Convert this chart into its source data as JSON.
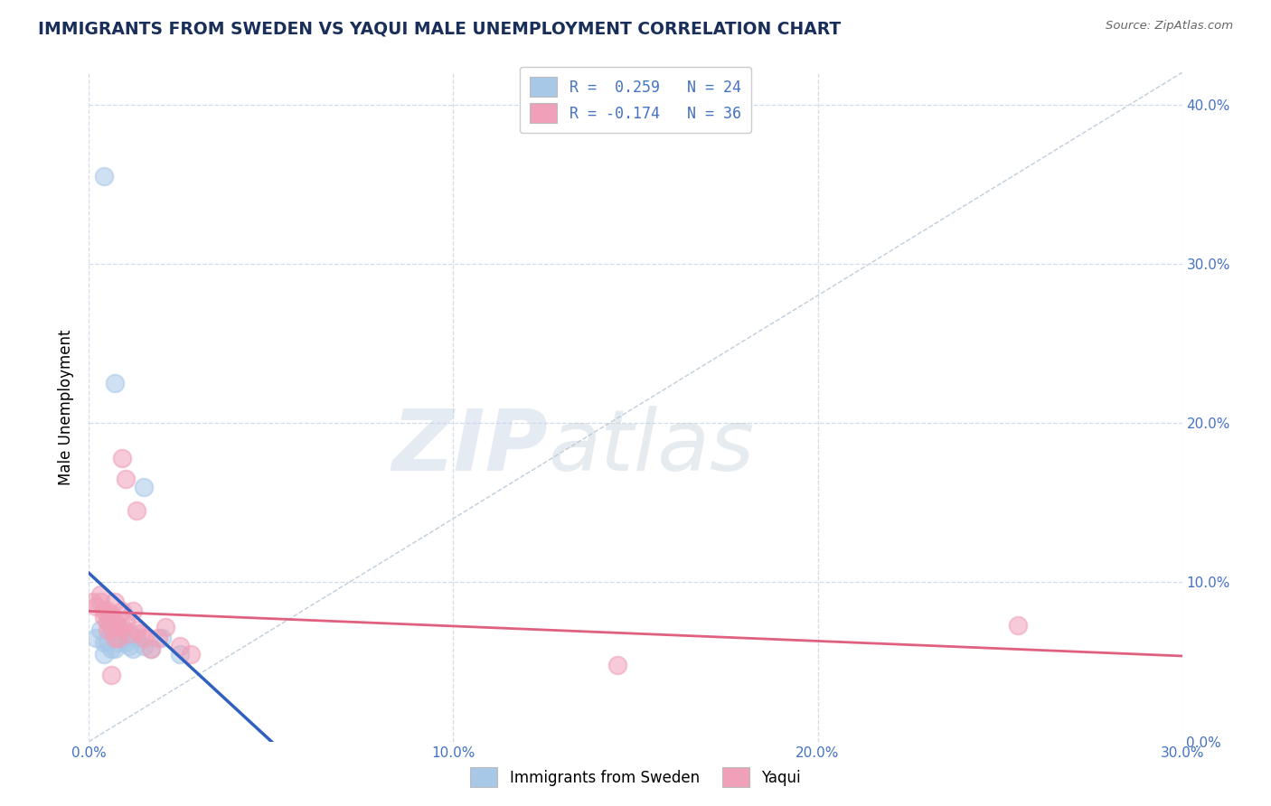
{
  "title": "IMMIGRANTS FROM SWEDEN VS YAQUI MALE UNEMPLOYMENT CORRELATION CHART",
  "source": "Source: ZipAtlas.com",
  "ylabel": "Male Unemployment",
  "xlim": [
    0.0,
    0.3
  ],
  "ylim": [
    0.0,
    0.42
  ],
  "legend_labels": [
    "Immigrants from Sweden",
    "Yaqui"
  ],
  "watermark_zip": "ZIP",
  "watermark_atlas": "atlas",
  "scatter_sweden": [
    [
      0.002,
      0.065
    ],
    [
      0.003,
      0.07
    ],
    [
      0.004,
      0.062
    ],
    [
      0.004,
      0.055
    ],
    [
      0.005,
      0.075
    ],
    [
      0.005,
      0.063
    ],
    [
      0.006,
      0.07
    ],
    [
      0.006,
      0.058
    ],
    [
      0.007,
      0.068
    ],
    [
      0.007,
      0.058
    ],
    [
      0.008,
      0.072
    ],
    [
      0.008,
      0.062
    ],
    [
      0.009,
      0.065
    ],
    [
      0.01,
      0.062
    ],
    [
      0.011,
      0.06
    ],
    [
      0.012,
      0.058
    ],
    [
      0.013,
      0.065
    ],
    [
      0.015,
      0.06
    ],
    [
      0.017,
      0.058
    ],
    [
      0.02,
      0.065
    ],
    [
      0.025,
      0.055
    ],
    [
      0.004,
      0.355
    ],
    [
      0.007,
      0.225
    ],
    [
      0.015,
      0.16
    ]
  ],
  "scatter_yaqui": [
    [
      0.001,
      0.088
    ],
    [
      0.002,
      0.085
    ],
    [
      0.003,
      0.092
    ],
    [
      0.003,
      0.088
    ],
    [
      0.004,
      0.082
    ],
    [
      0.004,
      0.078
    ],
    [
      0.005,
      0.075
    ],
    [
      0.005,
      0.082
    ],
    [
      0.005,
      0.07
    ],
    [
      0.006,
      0.08
    ],
    [
      0.006,
      0.072
    ],
    [
      0.006,
      0.078
    ],
    [
      0.007,
      0.075
    ],
    [
      0.007,
      0.065
    ],
    [
      0.007,
      0.088
    ],
    [
      0.008,
      0.072
    ],
    [
      0.008,
      0.065
    ],
    [
      0.009,
      0.082
    ],
    [
      0.009,
      0.072
    ],
    [
      0.01,
      0.075
    ],
    [
      0.011,
      0.068
    ],
    [
      0.012,
      0.082
    ],
    [
      0.013,
      0.07
    ],
    [
      0.014,
      0.068
    ],
    [
      0.015,
      0.065
    ],
    [
      0.017,
      0.058
    ],
    [
      0.019,
      0.065
    ],
    [
      0.021,
      0.072
    ],
    [
      0.025,
      0.06
    ],
    [
      0.028,
      0.055
    ],
    [
      0.01,
      0.165
    ],
    [
      0.013,
      0.145
    ],
    [
      0.009,
      0.178
    ],
    [
      0.255,
      0.073
    ],
    [
      0.145,
      0.048
    ],
    [
      0.006,
      0.042
    ]
  ],
  "sweden_color": "#a8c8e8",
  "yaqui_color": "#f0a0b8",
  "sweden_line_color": "#3060c0",
  "yaqui_line_color": "#e06080",
  "diagonal_color": "#b8c8d8",
  "grid_color": "#d0dce8",
  "background_color": "#ffffff",
  "title_color": "#1a2e5a",
  "axis_color": "#4472c4",
  "source_color": "#666666",
  "watermark_color": "#ccd8e8"
}
